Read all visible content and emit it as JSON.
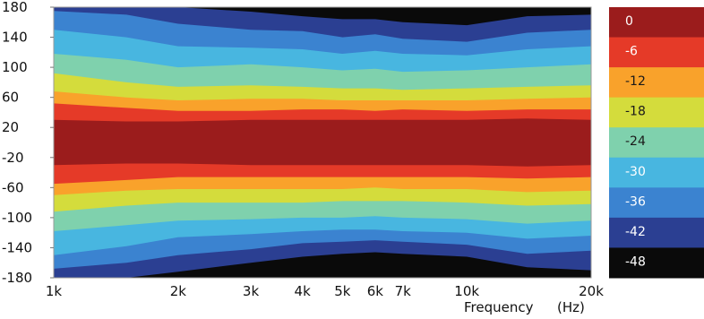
{
  "chart_data": {
    "type": "heatmap",
    "title": "",
    "xlabel": "Frequency",
    "xunit": "(Hz)",
    "ylabel": "",
    "x_scale": "log",
    "xlim": [
      1000,
      20000
    ],
    "ylim": [
      -180,
      180
    ],
    "x_ticks": [
      {
        "value": 1000,
        "label": "1k"
      },
      {
        "value": 2000,
        "label": "2k"
      },
      {
        "value": 3000,
        "label": "3k"
      },
      {
        "value": 4000,
        "label": "4k"
      },
      {
        "value": 5000,
        "label": "5k"
      },
      {
        "value": 6000,
        "label": "6k"
      },
      {
        "value": 7000,
        "label": "7k"
      },
      {
        "value": 10000,
        "label": "10k"
      },
      {
        "value": 20000,
        "label": "20k"
      }
    ],
    "y_ticks": [
      180,
      140,
      100,
      60,
      20,
      -20,
      -60,
      -100,
      -140,
      -180
    ],
    "colorbar": {
      "levels": [
        {
          "label": "0",
          "color": "#9b1c1c"
        },
        {
          "label": "-6",
          "color": "#e53a28"
        },
        {
          "label": "-12",
          "color": "#f9a22b"
        },
        {
          "label": "-18",
          "color": "#d4dc3c"
        },
        {
          "label": "-24",
          "color": "#7fd1ad"
        },
        {
          "label": "-30",
          "color": "#48b6e0"
        },
        {
          "label": "-36",
          "color": "#3b83d0"
        },
        {
          "label": "-42",
          "color": "#2b3f92"
        },
        {
          "label": "-48",
          "color": "#0a0a0a"
        }
      ]
    },
    "level_bands_deg": {
      "x": [
        1000,
        1500,
        2000,
        3000,
        4000,
        5000,
        6000,
        7000,
        10000,
        14000,
        20000
      ],
      "0": [
        30,
        28,
        28,
        30,
        30,
        30,
        30,
        30,
        30,
        32,
        30
      ],
      "-6": [
        52,
        46,
        42,
        42,
        44,
        44,
        42,
        44,
        42,
        44,
        44
      ],
      "-12": [
        68,
        60,
        56,
        58,
        58,
        56,
        56,
        56,
        56,
        58,
        60
      ],
      "-18": [
        92,
        80,
        74,
        76,
        74,
        72,
        72,
        70,
        72,
        74,
        76
      ],
      "-24": [
        118,
        110,
        100,
        104,
        100,
        96,
        98,
        94,
        96,
        100,
        104
      ],
      "-30": [
        150,
        140,
        128,
        126,
        124,
        118,
        122,
        118,
        116,
        124,
        128
      ],
      "-36": [
        175,
        170,
        158,
        150,
        148,
        140,
        144,
        138,
        134,
        146,
        150
      ],
      "-42": [
        180,
        180,
        180,
        174,
        168,
        164,
        164,
        160,
        156,
        168,
        170
      ]
    },
    "level_bands_deg_neg": {
      "0": [
        -30,
        -28,
        -28,
        -30,
        -30,
        -30,
        -30,
        -30,
        -30,
        -32,
        -30
      ],
      "-6": [
        -55,
        -50,
        -46,
        -46,
        -46,
        -46,
        -46,
        -46,
        -46,
        -48,
        -46
      ],
      "-12": [
        -70,
        -64,
        -62,
        -62,
        -62,
        -62,
        -60,
        -62,
        -62,
        -66,
        -64
      ],
      "-18": [
        -92,
        -84,
        -80,
        -80,
        -80,
        -78,
        -78,
        -78,
        -80,
        -84,
        -82
      ],
      "-24": [
        -118,
        -110,
        -104,
        -102,
        -100,
        -100,
        -98,
        -100,
        -102,
        -108,
        -104
      ],
      "-30": [
        -150,
        -138,
        -126,
        -122,
        -118,
        -116,
        -116,
        -118,
        -120,
        -128,
        -124
      ],
      "-36": [
        -168,
        -160,
        -150,
        -142,
        -134,
        -132,
        -130,
        -132,
        -136,
        -148,
        -144
      ],
      "-42": [
        -180,
        -180,
        -172,
        -160,
        -152,
        -148,
        -146,
        -148,
        -152,
        -166,
        -170
      ]
    }
  }
}
